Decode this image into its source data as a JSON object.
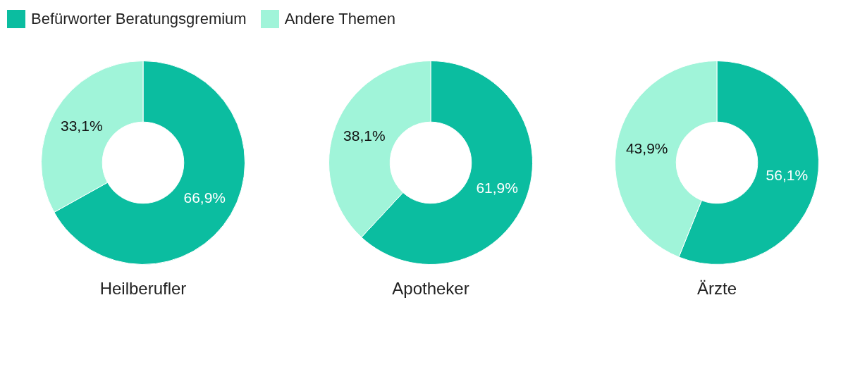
{
  "chart_data": [
    {
      "type": "donut",
      "title": "Heilberufler",
      "categories": [
        "Befürworter Beratungsgremium",
        "Andere Themen"
      ],
      "values": [
        66.9,
        33.1
      ],
      "colors": [
        "#0bbda0",
        "#a0f4d9"
      ],
      "value_labels": [
        "66,9%",
        "33,1%"
      ],
      "legend": "top"
    },
    {
      "type": "donut",
      "title": "Apotheker",
      "categories": [
        null,
        null
      ],
      "values": [
        61.9,
        38.1
      ],
      "colors": [
        "#0bbda0",
        "#a0f4d9"
      ],
      "value_labels": [
        "61,9%",
        "38,1%"
      ]
    },
    {
      "type": "donut",
      "title": "Ärzte",
      "categories": [
        null,
        null
      ],
      "values": [
        56.1,
        43.9
      ],
      "colors": [
        "#0bbda0",
        "#a0f4d9"
      ],
      "value_labels": [
        "56,1%",
        "43,9%"
      ]
    }
  ]
}
